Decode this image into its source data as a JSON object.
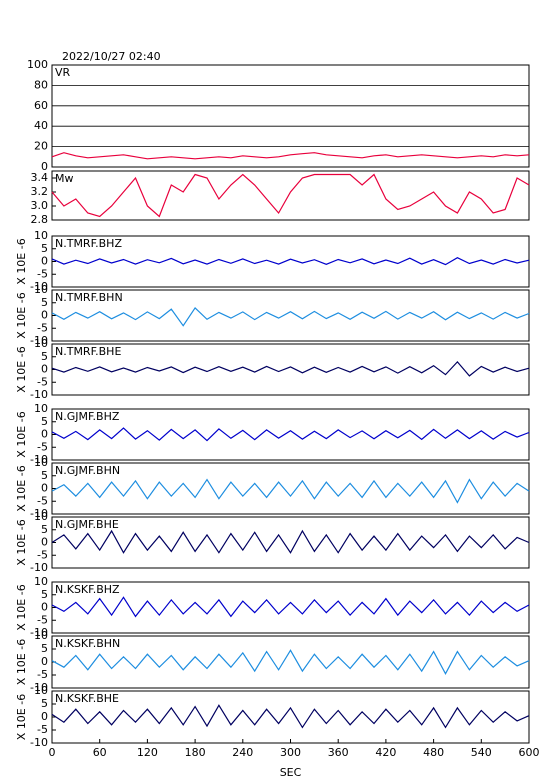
{
  "chart_data": [
    {
      "type": "line",
      "title": "2022/10/27 02:40",
      "label": "VR",
      "ylim": [
        0,
        100
      ],
      "yticks": [
        0,
        20,
        40,
        60,
        80,
        100
      ],
      "grid": true,
      "xlim": [
        0,
        600
      ],
      "color": "#e8003c",
      "x": [
        0,
        15,
        30,
        45,
        60,
        75,
        90,
        105,
        120,
        135,
        150,
        165,
        180,
        195,
        210,
        225,
        240,
        255,
        270,
        285,
        300,
        315,
        330,
        345,
        360,
        375,
        390,
        405,
        420,
        435,
        450,
        465,
        480,
        495,
        510,
        525,
        540,
        555,
        570,
        585,
        600
      ],
      "values": [
        10,
        14,
        11,
        9,
        10,
        11,
        12,
        10,
        8,
        9,
        10,
        9,
        8,
        9,
        10,
        9,
        11,
        10,
        9,
        10,
        12,
        13,
        14,
        12,
        11,
        10,
        9,
        11,
        12,
        10,
        11,
        12,
        11,
        10,
        9,
        10,
        11,
        10,
        12,
        11,
        12
      ]
    },
    {
      "type": "line",
      "label": "Mw",
      "ylim": [
        2.8,
        3.5
      ],
      "yticks": [
        2.8,
        {
          "value": 3,
          "label": "3.0"
        },
        3.2,
        3.4
      ],
      "xlim": [
        0,
        600
      ],
      "color": "#e8003c",
      "x": [
        0,
        15,
        30,
        45,
        60,
        75,
        90,
        105,
        120,
        135,
        150,
        165,
        180,
        195,
        210,
        225,
        240,
        255,
        270,
        285,
        300,
        315,
        330,
        345,
        360,
        375,
        390,
        405,
        420,
        435,
        450,
        465,
        480,
        495,
        510,
        525,
        540,
        555,
        570,
        585,
        600
      ],
      "values": [
        3.2,
        3.0,
        3.1,
        2.9,
        2.85,
        3.0,
        3.2,
        3.4,
        3.0,
        2.85,
        3.3,
        3.2,
        3.45,
        3.4,
        3.1,
        3.3,
        3.45,
        3.3,
        3.1,
        2.9,
        3.2,
        3.4,
        3.45,
        3.45,
        3.45,
        3.45,
        3.3,
        3.45,
        3.1,
        2.95,
        3.0,
        3.1,
        3.2,
        3.0,
        2.9,
        3.2,
        3.1,
        2.9,
        2.95,
        3.4,
        3.3
      ]
    },
    {
      "type": "line",
      "label": "N.TMRF.BHZ",
      "ylabel": "X 10E -6",
      "ylim": [
        -10,
        10
      ],
      "yticks": [
        -10,
        -5,
        0,
        5,
        10
      ],
      "xlim": [
        0,
        600
      ],
      "color": "#0000cc",
      "x": [
        0,
        15,
        30,
        45,
        60,
        75,
        90,
        105,
        120,
        135,
        150,
        165,
        180,
        195,
        210,
        225,
        240,
        255,
        270,
        285,
        300,
        315,
        330,
        345,
        360,
        375,
        390,
        405,
        420,
        435,
        450,
        465,
        480,
        495,
        510,
        525,
        540,
        555,
        570,
        585,
        600
      ],
      "values": [
        1,
        -1,
        0.5,
        -0.8,
        1,
        -0.6,
        0.8,
        -1,
        0.7,
        -0.5,
        1.2,
        -0.9,
        0.6,
        -1,
        0.8,
        -0.7,
        1,
        -0.8,
        0.5,
        -1,
        0.9,
        -0.6,
        0.7,
        -1.1,
        0.8,
        -0.5,
        1,
        -0.9,
        0.6,
        -0.8,
        1.3,
        -1,
        0.7,
        -1.2,
        1.5,
        -0.8,
        0.6,
        -1,
        0.8,
        -0.6,
        0.5
      ]
    },
    {
      "type": "line",
      "label": "N.TMRF.BHN",
      "ylabel": "X 10E -6",
      "ylim": [
        -10,
        10
      ],
      "yticks": [
        -10,
        -5,
        0,
        5,
        10
      ],
      "xlim": [
        0,
        600
      ],
      "color": "#1e8ee0",
      "x": [
        0,
        15,
        30,
        45,
        60,
        75,
        90,
        105,
        120,
        135,
        150,
        165,
        180,
        195,
        210,
        225,
        240,
        255,
        270,
        285,
        300,
        315,
        330,
        345,
        360,
        375,
        390,
        405,
        420,
        435,
        450,
        465,
        480,
        495,
        510,
        525,
        540,
        555,
        570,
        585,
        600
      ],
      "values": [
        1,
        -1.5,
        1.2,
        -1,
        1.5,
        -1.3,
        1,
        -1.6,
        1.4,
        -1.2,
        2.5,
        -4,
        3,
        -1.5,
        1.2,
        -1,
        1.4,
        -1.6,
        1.2,
        -1,
        1.5,
        -1.3,
        1.6,
        -1.2,
        1,
        -1.5,
        1.3,
        -1.1,
        1.6,
        -1.4,
        1.2,
        -1,
        1.5,
        -1.7,
        1.3,
        -1.2,
        1,
        -1.4,
        1.2,
        -1,
        0.8
      ]
    },
    {
      "type": "line",
      "label": "N.TMRF.BHE",
      "ylabel": "X 10E -6",
      "ylim": [
        -10,
        10
      ],
      "yticks": [
        -10,
        -5,
        0,
        5,
        10
      ],
      "xlim": [
        0,
        600
      ],
      "color": "#000060",
      "x": [
        0,
        15,
        30,
        45,
        60,
        75,
        90,
        105,
        120,
        135,
        150,
        165,
        180,
        195,
        210,
        225,
        240,
        255,
        270,
        285,
        300,
        315,
        330,
        345,
        360,
        375,
        390,
        405,
        420,
        435,
        450,
        465,
        480,
        495,
        510,
        525,
        540,
        555,
        570,
        585,
        600
      ],
      "values": [
        0.5,
        -1,
        0.8,
        -0.7,
        1,
        -0.9,
        0.6,
        -1,
        0.8,
        -0.6,
        1,
        -1.2,
        0.9,
        -0.8,
        1.1,
        -0.7,
        0.9,
        -1,
        1.2,
        -0.8,
        1,
        -1.3,
        0.9,
        -1.1,
        0.8,
        -1,
        1.2,
        -0.9,
        1,
        -1.4,
        1.1,
        -1.3,
        1.5,
        -2,
        3,
        -2.5,
        1.2,
        -1,
        0.9,
        -0.8,
        0.5
      ]
    },
    {
      "type": "line",
      "label": "N.GJMF.BHZ",
      "ylabel": "X 10E -6",
      "ylim": [
        -10,
        10
      ],
      "yticks": [
        -10,
        -5,
        0,
        5,
        10
      ],
      "xlim": [
        0,
        600
      ],
      "color": "#0000cc",
      "x": [
        0,
        15,
        30,
        45,
        60,
        75,
        90,
        105,
        120,
        135,
        150,
        165,
        180,
        195,
        210,
        225,
        240,
        255,
        270,
        285,
        300,
        315,
        330,
        345,
        360,
        375,
        390,
        405,
        420,
        435,
        450,
        465,
        480,
        495,
        510,
        525,
        540,
        555,
        570,
        585,
        600
      ],
      "values": [
        1,
        -1.5,
        1.2,
        -2,
        1.8,
        -1.6,
        2.5,
        -1.8,
        1.5,
        -2.2,
        2,
        -1.6,
        1.8,
        -2.4,
        2.2,
        -1.5,
        1.6,
        -2,
        1.8,
        -1.4,
        1.5,
        -1.8,
        1.3,
        -1.6,
        1.8,
        -1.2,
        1.4,
        -1.7,
        1.5,
        -1.3,
        1.6,
        -1.9,
        2,
        -1.5,
        1.8,
        -1.6,
        1.4,
        -1.8,
        1.2,
        -1,
        0.8
      ]
    },
    {
      "type": "line",
      "label": "N.GJMF.BHN",
      "ylabel": "X 10E -6",
      "ylim": [
        -10,
        10
      ],
      "yticks": [
        -10,
        -5,
        0,
        5,
        10
      ],
      "xlim": [
        0,
        600
      ],
      "color": "#1e8ee0",
      "x": [
        0,
        15,
        30,
        45,
        60,
        75,
        90,
        105,
        120,
        135,
        150,
        165,
        180,
        195,
        210,
        225,
        240,
        255,
        270,
        285,
        300,
        315,
        330,
        345,
        360,
        375,
        390,
        405,
        420,
        435,
        450,
        465,
        480,
        495,
        510,
        525,
        540,
        555,
        570,
        585,
        600
      ],
      "values": [
        -1,
        1.5,
        -3,
        2,
        -3.5,
        2.5,
        -3,
        3,
        -4,
        2.5,
        -3,
        2,
        -3.5,
        3.5,
        -4,
        2.5,
        -3,
        2,
        -3.5,
        2.5,
        -3,
        3,
        -4,
        2.5,
        -3,
        2,
        -3.5,
        3,
        -3.5,
        2,
        -3,
        2.5,
        -3.5,
        3,
        -5.5,
        3.5,
        -4,
        2.5,
        -3,
        2,
        -1
      ]
    },
    {
      "type": "line",
      "label": "N.GJMF.BHE",
      "ylabel": "X 10E -6",
      "ylim": [
        -10,
        10
      ],
      "yticks": [
        -10,
        -5,
        0,
        5,
        10
      ],
      "xlim": [
        0,
        600
      ],
      "color": "#000060",
      "x": [
        0,
        15,
        30,
        45,
        60,
        75,
        90,
        105,
        120,
        135,
        150,
        165,
        180,
        195,
        210,
        225,
        240,
        255,
        270,
        285,
        300,
        315,
        330,
        345,
        360,
        375,
        390,
        405,
        420,
        435,
        450,
        465,
        480,
        495,
        510,
        525,
        540,
        555,
        570,
        585,
        600
      ],
      "values": [
        0,
        3,
        -2.5,
        3.5,
        -3,
        4.5,
        -4,
        3.5,
        -3,
        2.5,
        -3.5,
        4,
        -3.5,
        3,
        -4,
        3.5,
        -3,
        4,
        -3.5,
        3,
        -4,
        4.5,
        -3.5,
        3,
        -4,
        3.5,
        -3,
        2.5,
        -3,
        3.5,
        -3,
        2.5,
        -2,
        3,
        -3.5,
        2.5,
        -2,
        3,
        -2.5,
        2,
        0
      ]
    },
    {
      "type": "line",
      "label": "N.KSKF.BHZ",
      "ylabel": "X 10E -6",
      "ylim": [
        -10,
        10
      ],
      "yticks": [
        -10,
        -5,
        0,
        5,
        10
      ],
      "xlim": [
        0,
        600
      ],
      "color": "#0000cc",
      "x": [
        0,
        15,
        30,
        45,
        60,
        75,
        90,
        105,
        120,
        135,
        150,
        165,
        180,
        195,
        210,
        225,
        240,
        255,
        270,
        285,
        300,
        315,
        330,
        345,
        360,
        375,
        390,
        405,
        420,
        435,
        450,
        465,
        480,
        495,
        510,
        525,
        540,
        555,
        570,
        585,
        600
      ],
      "values": [
        1,
        -1.5,
        2,
        -2.5,
        3.5,
        -3,
        4,
        -3.5,
        2.5,
        -3,
        3,
        -2.5,
        2,
        -2.5,
        3,
        -3.5,
        2.5,
        -2,
        3,
        -2.5,
        2,
        -2.5,
        3,
        -2,
        2.5,
        -3,
        2,
        -2.5,
        3.5,
        -3,
        2.5,
        -2,
        3,
        -2.5,
        2,
        -3,
        2.5,
        -2,
        2,
        -1.5,
        1
      ]
    },
    {
      "type": "line",
      "label": "N.KSKF.BHN",
      "ylabel": "X 10E -6",
      "ylim": [
        -10,
        10
      ],
      "yticks": [
        -10,
        -5,
        0,
        5,
        10
      ],
      "xlim": [
        0,
        600
      ],
      "color": "#1e8ee0",
      "x": [
        0,
        15,
        30,
        45,
        60,
        75,
        90,
        105,
        120,
        135,
        150,
        165,
        180,
        195,
        210,
        225,
        240,
        255,
        270,
        285,
        300,
        315,
        330,
        345,
        360,
        375,
        390,
        405,
        420,
        435,
        450,
        465,
        480,
        495,
        510,
        525,
        540,
        555,
        570,
        585,
        600
      ],
      "values": [
        0.5,
        -2,
        2.5,
        -3,
        3,
        -2.5,
        2,
        -2.5,
        3,
        -2,
        2.5,
        -3,
        2,
        -2.5,
        3,
        -2,
        3.5,
        -3.5,
        4,
        -3,
        4.5,
        -3.5,
        3,
        -2.5,
        2,
        -2.5,
        3,
        -2,
        2.5,
        -3,
        3,
        -3.5,
        4,
        -4.5,
        4,
        -3,
        2.5,
        -2,
        2,
        -1.5,
        0.5
      ]
    },
    {
      "type": "line",
      "label": "N.KSKF.BHE",
      "ylabel": "X 10E -6",
      "xlabel": "SEC",
      "ylim": [
        -10,
        10
      ],
      "yticks": [
        -10,
        -5,
        0,
        5,
        10
      ],
      "xlim": [
        0,
        600
      ],
      "xticks": [
        0,
        60,
        120,
        180,
        240,
        300,
        360,
        420,
        480,
        540,
        600
      ],
      "color": "#000060",
      "x": [
        0,
        15,
        30,
        45,
        60,
        75,
        90,
        105,
        120,
        135,
        150,
        165,
        180,
        195,
        210,
        225,
        240,
        255,
        270,
        285,
        300,
        315,
        330,
        345,
        360,
        375,
        390,
        405,
        420,
        435,
        450,
        465,
        480,
        495,
        510,
        525,
        540,
        555,
        570,
        585,
        600
      ],
      "values": [
        1,
        -2,
        3,
        -2.5,
        2,
        -3,
        2.5,
        -2,
        3,
        -2.5,
        3.5,
        -3,
        4,
        -3.5,
        4.5,
        -3,
        2.5,
        -3,
        3,
        -2.5,
        3.5,
        -4,
        3,
        -2.5,
        2.5,
        -3,
        2,
        -2.5,
        3,
        -2,
        2.5,
        -3,
        3.5,
        -4,
        3.5,
        -3,
        2.5,
        -2,
        2,
        -1.5,
        0.5
      ]
    }
  ]
}
